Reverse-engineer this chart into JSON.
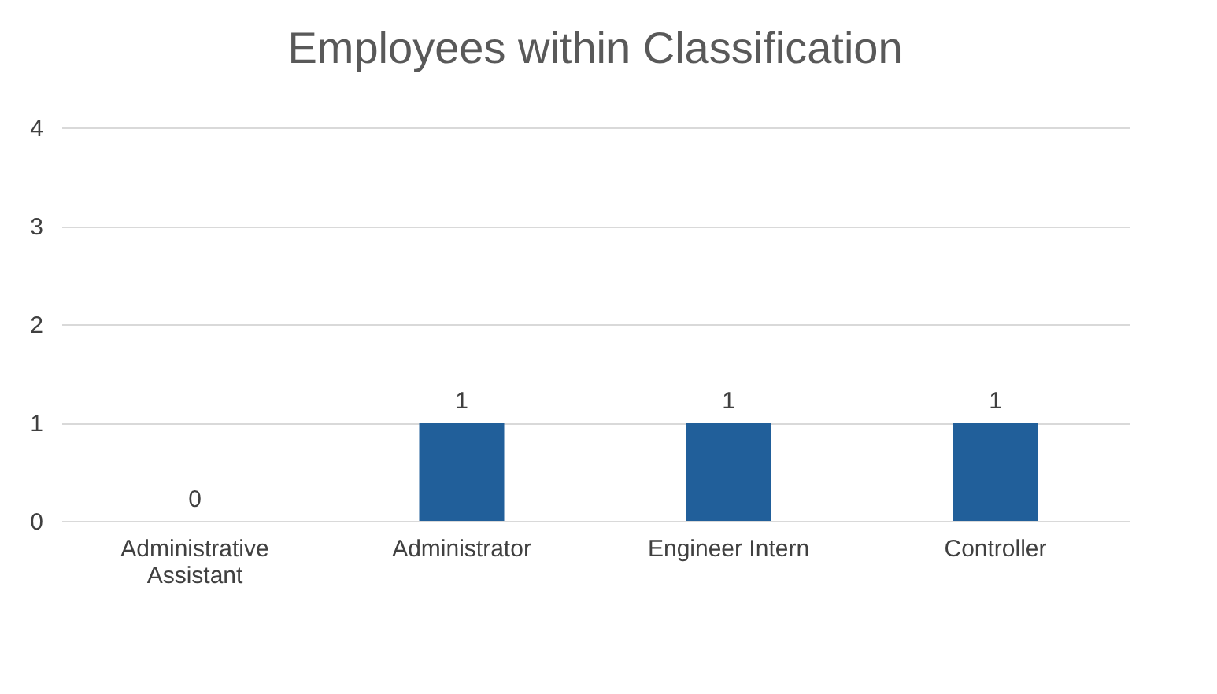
{
  "chart_data": {
    "type": "bar",
    "title": "Employees within Classification",
    "categories": [
      "Administrative Assistant",
      "Administrator",
      "Engineer Intern",
      "Controller"
    ],
    "values": [
      0,
      1,
      1,
      1
    ],
    "color": "#215f9a",
    "ylim": [
      0,
      4
    ],
    "yticks": [
      0,
      1,
      2,
      3,
      4
    ],
    "grid": "y",
    "data_labels": true,
    "legend": false
  }
}
